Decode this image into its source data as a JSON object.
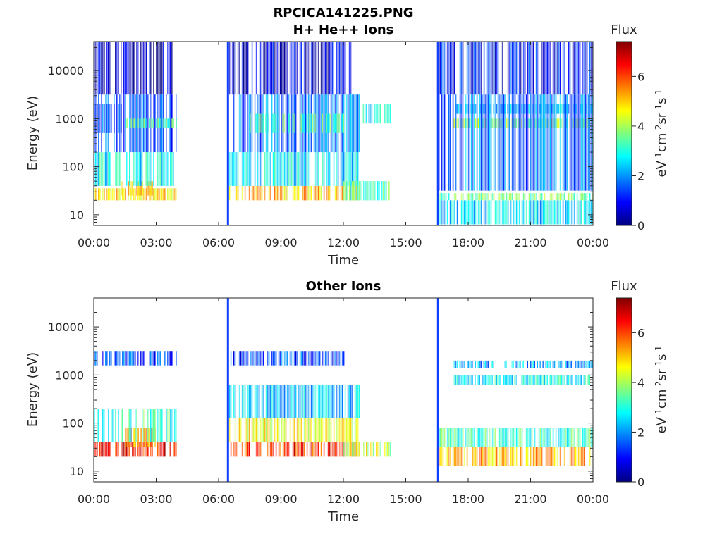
{
  "figure_title": "RPCICA141225.PNG",
  "chart_data": [
    {
      "type": "heatmap",
      "title": "H+ He++ Ions",
      "xlabel": "Time",
      "ylabel": "Energy (eV)",
      "x_ticks": [
        "00:00",
        "03:00",
        "06:00",
        "09:00",
        "12:00",
        "15:00",
        "18:00",
        "21:00",
        "00:00"
      ],
      "xlim_hours": [
        0,
        24
      ],
      "y_scale": "log",
      "y_ticks": [
        "10",
        "100",
        "1000",
        "10000"
      ],
      "ylim": [
        6,
        40000
      ],
      "colorbar": {
        "label": "Flux",
        "units": "eV-1cm-2sr-1s-1",
        "ticks": [
          "0",
          "2",
          "4",
          "6"
        ],
        "range": [
          0,
          7.4
        ],
        "colormap": "jet"
      },
      "data_gaps_hours": [
        [
          3.95,
          6.4
        ],
        [
          12.8,
          16.4
        ]
      ],
      "bands": [
        {
          "t": [
            0,
            3.95
          ],
          "e_log": [
            1.3,
            1.55
          ],
          "value": 4.8
        },
        {
          "t": [
            1.3,
            2.8
          ],
          "e_log": [
            1.4,
            1.7
          ],
          "value": 5.2
        },
        {
          "t": [
            0,
            3.95
          ],
          "e_log": [
            1.6,
            2.3
          ],
          "value": 2.8
        },
        {
          "t": [
            0,
            3.95
          ],
          "e_log": [
            2.3,
            3.5
          ],
          "value": 1.6
        },
        {
          "t": [
            0,
            1.3
          ],
          "e_log": [
            2.7,
            3.3
          ],
          "value": 1.3
        },
        {
          "t": [
            1.5,
            3.95
          ],
          "e_log": [
            2.8,
            3.0
          ],
          "value": 3.2
        },
        {
          "t": [
            0,
            3.95
          ],
          "e_log": [
            3.5,
            4.6
          ],
          "value": 0.5
        },
        {
          "t": [
            6.5,
            12.8
          ],
          "e_log": [
            1.3,
            1.6
          ],
          "value": 5.0
        },
        {
          "t": [
            6.5,
            12.8
          ],
          "e_log": [
            1.6,
            2.3
          ],
          "value": 2.6
        },
        {
          "t": [
            6.5,
            12.8
          ],
          "e_log": [
            2.3,
            3.5
          ],
          "value": 1.8
        },
        {
          "t": [
            7.5,
            12.0
          ],
          "e_log": [
            2.7,
            3.1
          ],
          "value": 3.4
        },
        {
          "t": [
            6.5,
            12.5
          ],
          "e_log": [
            3.5,
            4.6
          ],
          "value": 0.6
        },
        {
          "t": [
            12.0,
            14.3
          ],
          "e_log": [
            1.3,
            1.7
          ],
          "value": 3.3
        },
        {
          "t": [
            12.8,
            14.3
          ],
          "e_log": [
            2.9,
            3.3
          ],
          "value": 2.8
        },
        {
          "t": [
            16.5,
            24
          ],
          "e_log": [
            1.3,
            1.45
          ],
          "value": 3.6
        },
        {
          "t": [
            16.5,
            24
          ],
          "e_log": [
            0.8,
            1.3
          ],
          "value": 2.5
        },
        {
          "t": [
            17.3,
            24
          ],
          "e_log": [
            2.8,
            3.0
          ],
          "value": 3.8
        },
        {
          "t": [
            17.3,
            24
          ],
          "e_log": [
            3.1,
            3.3
          ],
          "value": 2.4
        },
        {
          "t": [
            16.5,
            24
          ],
          "e_log": [
            1.5,
            3.5
          ],
          "value": 1.8
        },
        {
          "t": [
            16.5,
            24
          ],
          "e_log": [
            3.5,
            4.6
          ],
          "value": 1.0
        }
      ],
      "spikes_hours": [
        6.4,
        16.5
      ]
    },
    {
      "type": "heatmap",
      "title": "Other Ions",
      "xlabel": "Time",
      "ylabel": "Energy (eV)",
      "x_ticks": [
        "00:00",
        "03:00",
        "06:00",
        "09:00",
        "12:00",
        "15:00",
        "18:00",
        "21:00",
        "00:00"
      ],
      "xlim_hours": [
        0,
        24
      ],
      "y_scale": "log",
      "y_ticks": [
        "10",
        "100",
        "1000",
        "10000"
      ],
      "ylim": [
        6,
        40000
      ],
      "colorbar": {
        "label": "Flux",
        "units": "eV-1cm-2sr-1s-1",
        "ticks": [
          "0",
          "2",
          "4",
          "6"
        ],
        "range": [
          0,
          7.4
        ],
        "colormap": "jet"
      },
      "data_gaps_hours": [
        [
          3.95,
          6.4
        ],
        [
          12.8,
          16.4
        ]
      ],
      "bands": [
        {
          "t": [
            0,
            3.95
          ],
          "e_log": [
            1.3,
            1.6
          ],
          "value": 6.4
        },
        {
          "t": [
            1.3,
            3.0
          ],
          "e_log": [
            1.5,
            1.9
          ],
          "value": 5.6
        },
        {
          "t": [
            0,
            3.95
          ],
          "e_log": [
            1.6,
            2.3
          ],
          "value": 3.2
        },
        {
          "t": [
            0,
            3.95
          ],
          "e_log": [
            3.2,
            3.5
          ],
          "value": 1.4
        },
        {
          "t": [
            6.5,
            12.8
          ],
          "e_log": [
            1.3,
            1.6
          ],
          "value": 6.2
        },
        {
          "t": [
            6.5,
            12.8
          ],
          "e_log": [
            1.6,
            2.1
          ],
          "value": 4.6
        },
        {
          "t": [
            6.5,
            12.8
          ],
          "e_log": [
            2.1,
            2.8
          ],
          "value": 2.4
        },
        {
          "t": [
            6.5,
            12.0
          ],
          "e_log": [
            3.2,
            3.5
          ],
          "value": 1.4
        },
        {
          "t": [
            12.0,
            14.3
          ],
          "e_log": [
            1.3,
            1.6
          ],
          "value": 4.2
        },
        {
          "t": [
            16.5,
            24
          ],
          "e_log": [
            1.1,
            1.5
          ],
          "value": 5.2
        },
        {
          "t": [
            16.5,
            24
          ],
          "e_log": [
            1.5,
            1.9
          ],
          "value": 3.2
        },
        {
          "t": [
            17.3,
            24
          ],
          "e_log": [
            2.8,
            3.0
          ],
          "value": 2.8
        },
        {
          "t": [
            17.3,
            24
          ],
          "e_log": [
            3.15,
            3.3
          ],
          "value": 2.2
        }
      ],
      "spikes_hours": [
        6.4,
        16.5
      ]
    }
  ]
}
